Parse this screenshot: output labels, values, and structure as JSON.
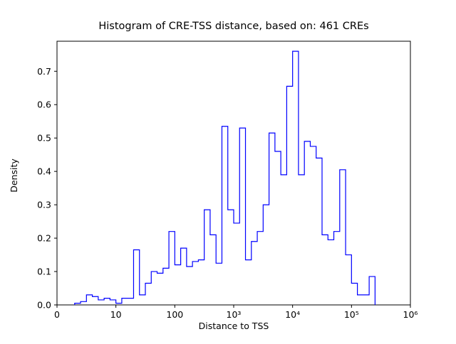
{
  "figure": {
    "background": "#ffffff"
  },
  "chart_data": {
    "type": "histogram-step",
    "title": "Histogram of CRE-TSS distance, based on: 461 CREs",
    "xlabel": "Distance to TSS",
    "ylabel": "Density",
    "n_samples": 461,
    "x_scale": "symlog",
    "x_tick_labels": [
      "0",
      "10",
      "100",
      "10³",
      "10⁴",
      "10⁵",
      "10⁶"
    ],
    "x_tick_log_positions": [
      0,
      1,
      2,
      3,
      4,
      5,
      6
    ],
    "xlim_log": [
      0,
      6
    ],
    "y_ticks": [
      0.0,
      0.1,
      0.2,
      0.3,
      0.4,
      0.5,
      0.6,
      0.7
    ],
    "ylim": [
      0,
      0.79
    ],
    "grid": false,
    "legend": "none",
    "line_color": "#0000ff",
    "frame_color": "#000000",
    "bins_log10_start": 0.3,
    "bin_log10_width": 0.1,
    "bin_heights": [
      0.005,
      0.01,
      0.03,
      0.025,
      0.015,
      0.02,
      0.015,
      0.005,
      0.02,
      0.02,
      0.165,
      0.03,
      0.065,
      0.1,
      0.095,
      0.11,
      0.22,
      0.12,
      0.17,
      0.115,
      0.13,
      0.135,
      0.285,
      0.21,
      0.125,
      0.535,
      0.285,
      0.245,
      0.53,
      0.135,
      0.19,
      0.22,
      0.3,
      0.515,
      0.46,
      0.39,
      0.655,
      0.76,
      0.39,
      0.49,
      0.475,
      0.44,
      0.21,
      0.195,
      0.22,
      0.405,
      0.15,
      0.065,
      0.03,
      0.03,
      0.085
    ]
  }
}
